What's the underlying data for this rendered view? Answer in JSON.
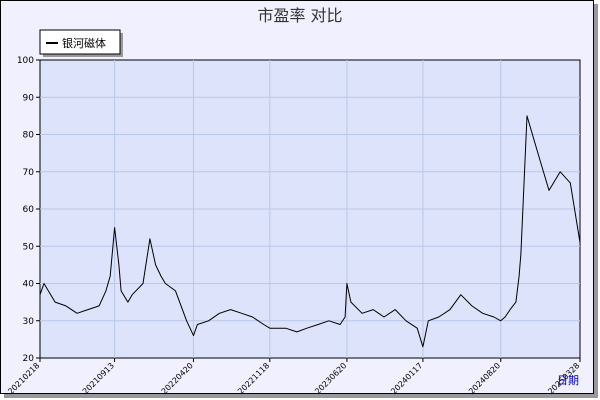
{
  "chart_data": {
    "type": "line",
    "title": "市盈率  对比",
    "xlabel": "日期",
    "ylabel": "",
    "ylim": [
      20,
      100
    ],
    "yticks": [
      20,
      30,
      40,
      50,
      60,
      70,
      80,
      90,
      100
    ],
    "grid": true,
    "legend_position": "top-left",
    "colors": {
      "background": "#f0f0ff",
      "plot_background": "#dce3fa",
      "grid": "#b8c8ea",
      "line": "#000000",
      "xlabel": "#0000cc"
    },
    "xticks": [
      "20210218",
      "20210913",
      "20220420",
      "20221118",
      "20230620",
      "20240117",
      "20240820",
      "20250328"
    ],
    "x_range": [
      "20210218",
      "20250328"
    ],
    "series": [
      {
        "name": "银河磁体",
        "x": [
          "20210218",
          "20210301",
          "20210401",
          "20210501",
          "20210601",
          "20210701",
          "20210801",
          "20210820",
          "20210901",
          "20210913",
          "20210925",
          "20211001",
          "20211020",
          "20211101",
          "20211201",
          "20211220",
          "20220105",
          "20220120",
          "20220201",
          "20220301",
          "20220401",
          "20220420",
          "20220501",
          "20220601",
          "20220701",
          "20220801",
          "20220901",
          "20221001",
          "20221101",
          "20221118",
          "20221201",
          "20230101",
          "20230201",
          "20230301",
          "20230401",
          "20230501",
          "20230601",
          "20230615",
          "20230620",
          "20230701",
          "20230801",
          "20230901",
          "20231001",
          "20231101",
          "20231201",
          "20240101",
          "20240117",
          "20240201",
          "20240301",
          "20240401",
          "20240501",
          "20240601",
          "20240701",
          "20240801",
          "20240820",
          "20240901",
          "20240915",
          "20241001",
          "20241010",
          "20241015",
          "20241101",
          "20241201",
          "20250101",
          "20250201",
          "20250301",
          "20250328"
        ],
        "values": [
          37,
          40,
          35,
          34,
          32,
          33,
          34,
          38,
          42,
          55,
          45,
          38,
          35,
          37,
          40,
          52,
          45,
          42,
          40,
          38,
          30,
          26,
          29,
          30,
          32,
          33,
          32,
          31,
          29,
          28,
          28,
          28,
          27,
          28,
          29,
          30,
          29,
          31,
          40,
          35,
          32,
          33,
          31,
          33,
          30,
          28,
          23,
          30,
          31,
          33,
          37,
          34,
          32,
          31,
          30,
          31,
          33,
          35,
          42,
          48,
          85,
          75,
          65,
          70,
          67,
          51
        ]
      }
    ]
  }
}
